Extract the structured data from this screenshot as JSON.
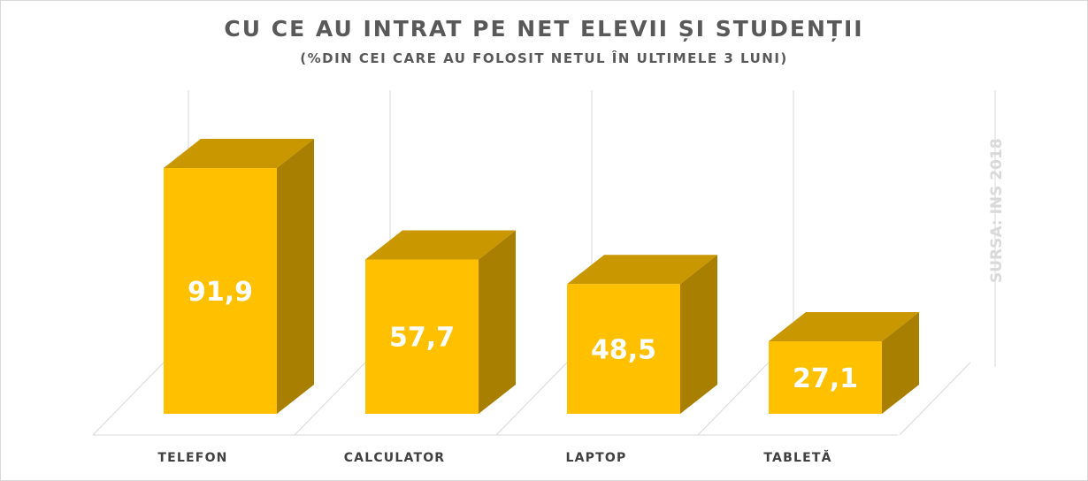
{
  "chart_data": {
    "type": "bar",
    "title": "CU CE AU INTRAT PE NET ELEVII ȘI STUDENȚII",
    "subtitle": "(%DIN CEI CARE AU FOLOSIT NETUL ÎN ULTIMELE 3 LUNI)",
    "source": "SURSA: INS 2018",
    "categories": [
      "TELEFON",
      "CALCULATOR",
      "LAPTOP",
      "TABLETĂ"
    ],
    "values": [
      91.9,
      57.7,
      48.5,
      27.1
    ],
    "value_labels": [
      "91,9",
      "57,7",
      "48,5",
      "27,1"
    ],
    "ylim": [
      0,
      100
    ],
    "grid": true,
    "style": "3d-column",
    "colors": {
      "front": "#FFC000",
      "top": "#C99700",
      "side": "#A87F00"
    }
  }
}
